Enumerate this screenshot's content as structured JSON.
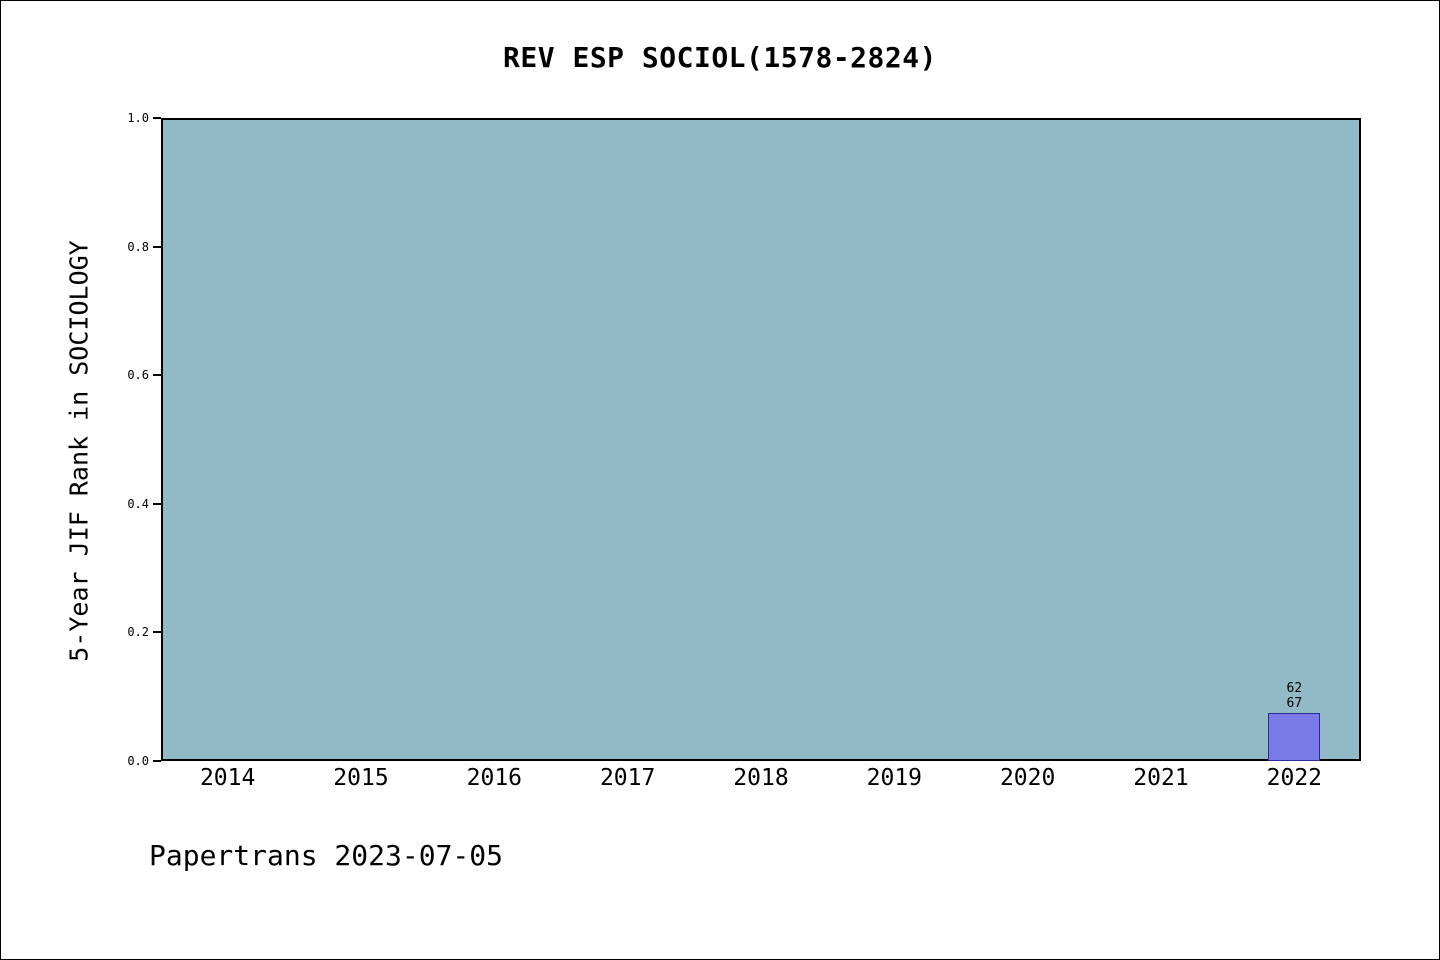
{
  "title": "REV ESP SOCIOL(1578-2824)",
  "footer": "Papertrans 2023-07-05",
  "chart_data": {
    "type": "bar",
    "title": "REV ESP SOCIOL(1578-2824)",
    "xlabel": "",
    "ylabel": "5-Year JIF Rank in SOCIOLOGY",
    "categories": [
      "2014",
      "2015",
      "2016",
      "2017",
      "2018",
      "2019",
      "2020",
      "2021",
      "2022"
    ],
    "values": [
      null,
      null,
      null,
      null,
      null,
      null,
      null,
      null,
      0.075
    ],
    "annotations": [
      {
        "category": "2022",
        "lines": [
          "62",
          "67"
        ]
      }
    ],
    "ylim": [
      0,
      1
    ],
    "yticks": [
      0.0,
      0.2,
      0.4,
      0.6,
      0.8,
      1.0
    ],
    "grid": false,
    "legend_position": "none",
    "colors": {
      "plot_bg": "#92BAC6",
      "bar_fill": "#7B7BE8",
      "bar_edge": "#2A2A99",
      "axis": "#000000",
      "text": "#000000",
      "figure_bg": "#FFFFFF"
    }
  }
}
